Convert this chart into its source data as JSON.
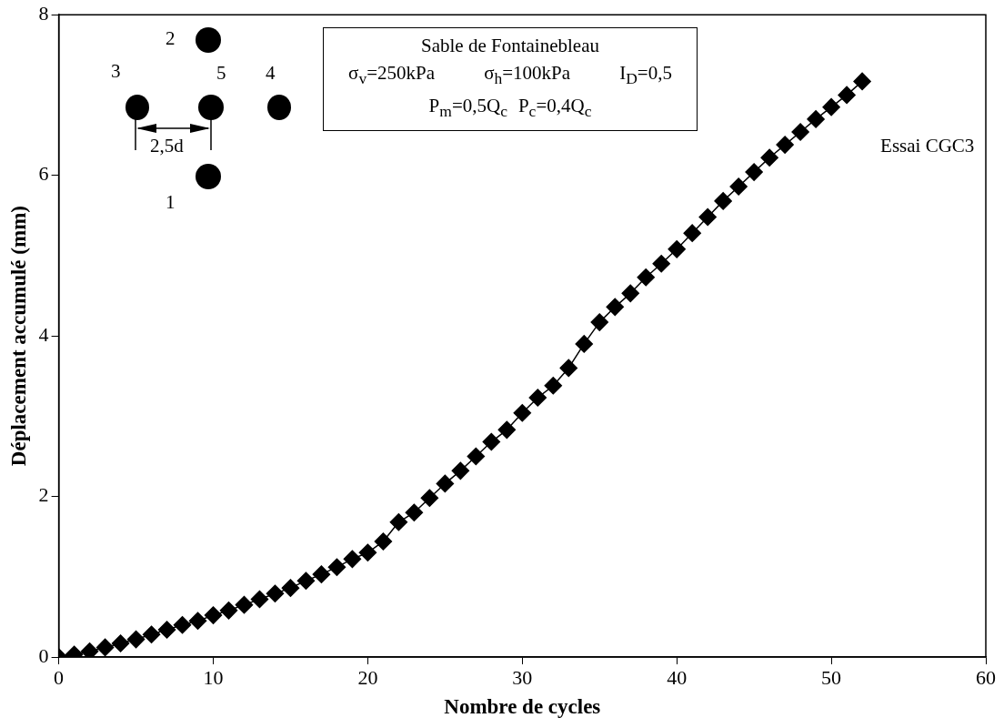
{
  "chart_data": {
    "type": "line",
    "xlabel": "Nombre de cycles",
    "ylabel": "Déplacement accumulé (mm)",
    "x": [
      0,
      1,
      2,
      3,
      4,
      5,
      6,
      7,
      8,
      9,
      10,
      11,
      12,
      13,
      14,
      15,
      16,
      17,
      18,
      19,
      20,
      21,
      22,
      23,
      24,
      25,
      26,
      27,
      28,
      29,
      30,
      31,
      32,
      33,
      34,
      35,
      36,
      37,
      38,
      39,
      40,
      41,
      42,
      43,
      44,
      45,
      46,
      47,
      48,
      49,
      50,
      51,
      52
    ],
    "series": [
      {
        "name": "Essai CGC3",
        "color": "#000000",
        "values": [
          0,
          0.03,
          0.07,
          0.12,
          0.17,
          0.22,
          0.28,
          0.34,
          0.4,
          0.45,
          0.52,
          0.58,
          0.65,
          0.72,
          0.79,
          0.86,
          0.95,
          1.03,
          1.12,
          1.22,
          1.3,
          1.44,
          1.68,
          1.8,
          1.98,
          2.16,
          2.32,
          2.5,
          2.68,
          2.83,
          3.04,
          3.23,
          3.38,
          3.6,
          3.9,
          4.17,
          4.36,
          4.53,
          4.73,
          4.9,
          5.08,
          5.28,
          5.48,
          5.68,
          5.86,
          6.04,
          6.22,
          6.38,
          6.54,
          6.7,
          6.85,
          7.0,
          7.17
        ]
      }
    ],
    "xlim": [
      0,
      60
    ],
    "xticks": [
      0,
      10,
      20,
      30,
      40,
      50,
      60
    ],
    "ylim": [
      0,
      8
    ],
    "yticks": [
      0,
      2,
      4,
      6,
      8
    ],
    "marker": "diamond",
    "line_style": "solid",
    "legend": false,
    "annotations": [
      "Sable de Fontainebleau",
      "σ$_{v}$=250kPa",
      "σ$_{h}$=100kPa",
      "I$_{D}$=0,5",
      "P$_{m}$=0,5Q$_{c}$",
      "P$_{c}$=0,4Q$_{c}$",
      "2",
      "3",
      "5",
      "4",
      "1",
      "2,5d"
    ]
  }
}
